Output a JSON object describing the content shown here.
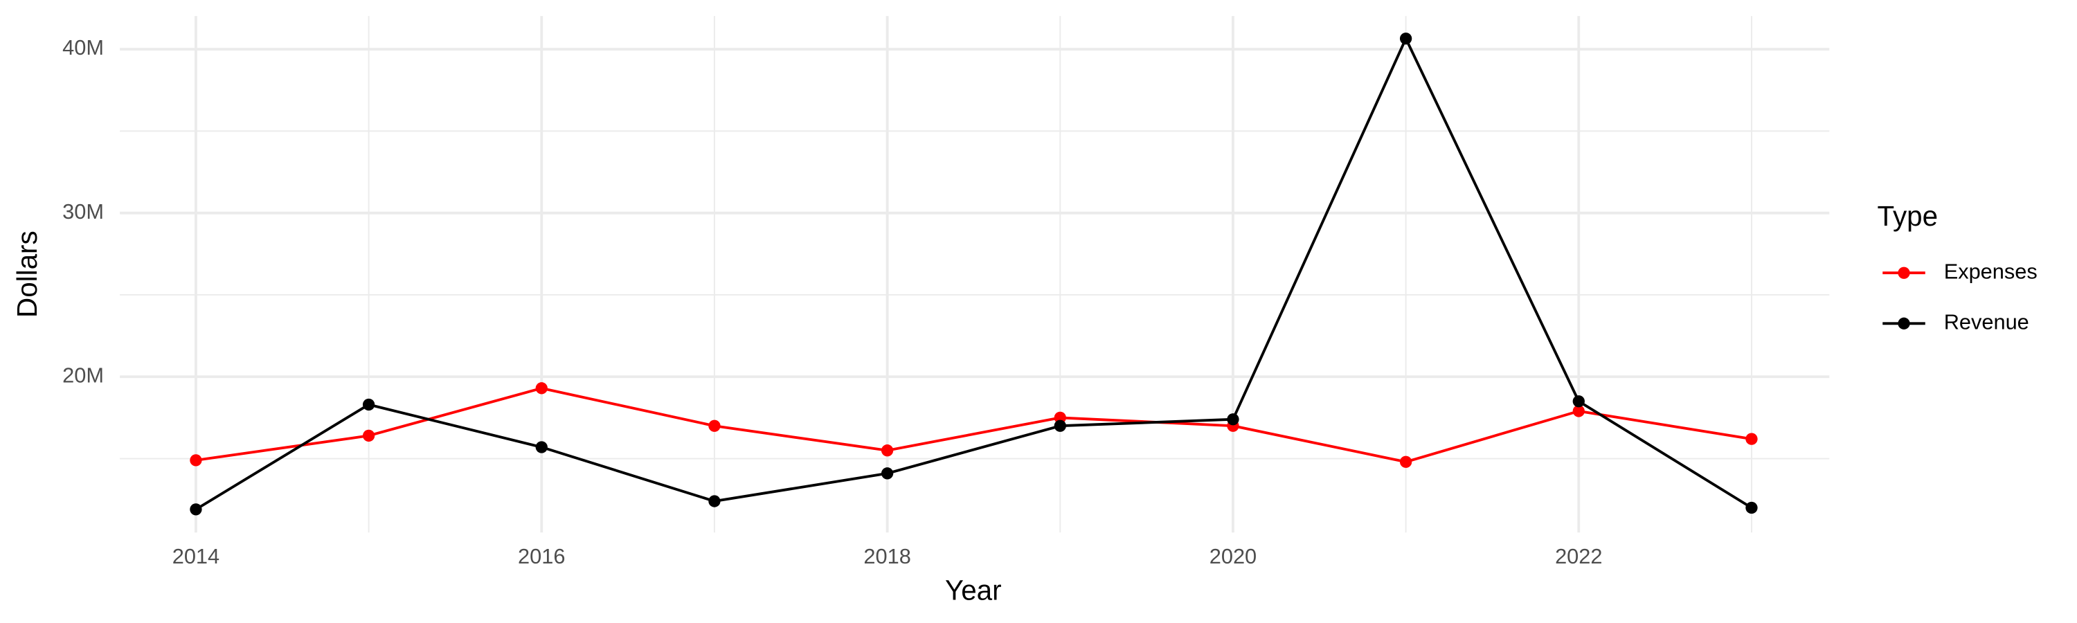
{
  "chart_data": {
    "type": "line",
    "x_label": "Year",
    "y_label": "Dollars",
    "legend_title": "Type",
    "legend_position": "right",
    "grid": true,
    "x": [
      2014,
      2015,
      2016,
      2017,
      2018,
      2019,
      2020,
      2021,
      2022,
      2023
    ],
    "series": [
      {
        "name": "Expenses",
        "color": "#ff0000",
        "values": [
          14900000,
          16400000,
          19300000,
          17000000,
          15500000,
          17500000,
          17000000,
          14800000,
          17900000,
          16200000
        ]
      },
      {
        "name": "Revenue",
        "color": "#000000",
        "values": [
          11900000,
          18300000,
          15700000,
          12400000,
          14100000,
          17000000,
          17400000,
          40650000,
          18500000,
          12000000
        ]
      }
    ],
    "xlim": [
      2013.56,
      2023.45
    ],
    "xticks": [
      2014,
      2016,
      2018,
      2020,
      2022
    ],
    "ylim": [
      10490000,
      42030000
    ],
    "yticks": [
      {
        "value": 20000000,
        "label": "20M"
      },
      {
        "value": 30000000,
        "label": "30M"
      },
      {
        "value": 40000000,
        "label": "40M"
      }
    ]
  }
}
